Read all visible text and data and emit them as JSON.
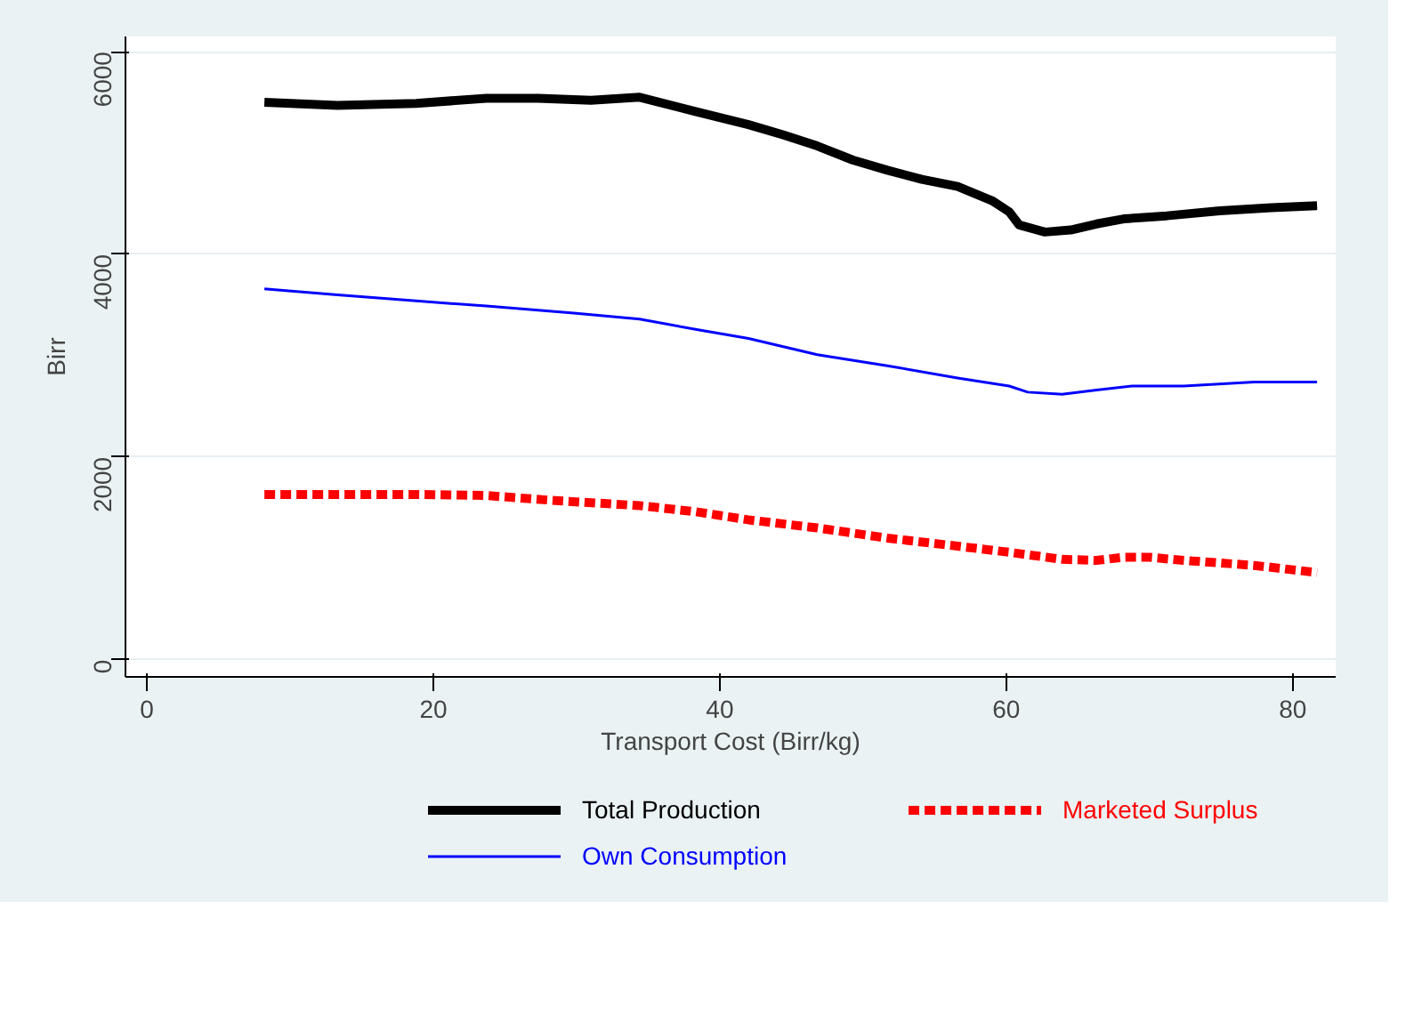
{
  "chart_data": {
    "type": "line",
    "xlabel": "Transport Cost (Birr/kg)",
    "ylabel": "Birr",
    "xlim": [
      -1.5,
      83
    ],
    "ylim": [
      -170,
      6150
    ],
    "xticks": [
      0,
      20,
      40,
      60,
      80
    ],
    "yticks": [
      0,
      2000,
      4000,
      6000
    ],
    "grid": "y",
    "legend": "bottom",
    "series": [
      {
        "name": "Total Production",
        "color": "#000000",
        "line_style": "solid",
        "x": [
          8.2,
          13.3,
          18.8,
          23.7,
          27.3,
          31.0,
          34.4,
          38.3,
          42.0,
          44.4,
          46.8,
          49.3,
          51.7,
          54.1,
          56.6,
          59.0,
          60.2,
          60.9,
          62.7,
          64.5,
          66.3,
          68.2,
          71.2,
          74.9,
          78.5,
          81.7
        ],
        "values": [
          5500,
          5470,
          5490,
          5540,
          5540,
          5520,
          5550,
          5410,
          5280,
          5180,
          5070,
          4930,
          4830,
          4740,
          4670,
          4530,
          4420,
          4290,
          4220,
          4240,
          4300,
          4350,
          4380,
          4430,
          4460,
          4480
        ]
      },
      {
        "name": "Marketed Surplus",
        "color": "#ff0000",
        "line_style": "dashed",
        "x": [
          8.2,
          13.9,
          18.8,
          23.7,
          28.5,
          34.4,
          38.3,
          42.0,
          46.8,
          51.7,
          56.6,
          60.2,
          63.9,
          66.3,
          68.2,
          70.0,
          72.4,
          77.3,
          81.7
        ],
        "values": [
          1630,
          1630,
          1630,
          1620,
          1570,
          1520,
          1460,
          1380,
          1300,
          1200,
          1120,
          1060,
          990,
          980,
          1010,
          1010,
          980,
          930,
          860
        ]
      },
      {
        "name": "Own Consumption",
        "color": "#0000ff",
        "line_style": "solid",
        "x": [
          8.2,
          13.3,
          18.8,
          23.7,
          29.8,
          34.4,
          38.3,
          42.0,
          46.8,
          51.7,
          56.6,
          60.2,
          61.5,
          63.9,
          66.3,
          68.8,
          72.4,
          77.3,
          81.7
        ],
        "values": [
          3660,
          3600,
          3540,
          3490,
          3420,
          3360,
          3260,
          3170,
          3010,
          2900,
          2780,
          2700,
          2640,
          2620,
          2660,
          2700,
          2700,
          2740,
          2740
        ]
      }
    ]
  }
}
